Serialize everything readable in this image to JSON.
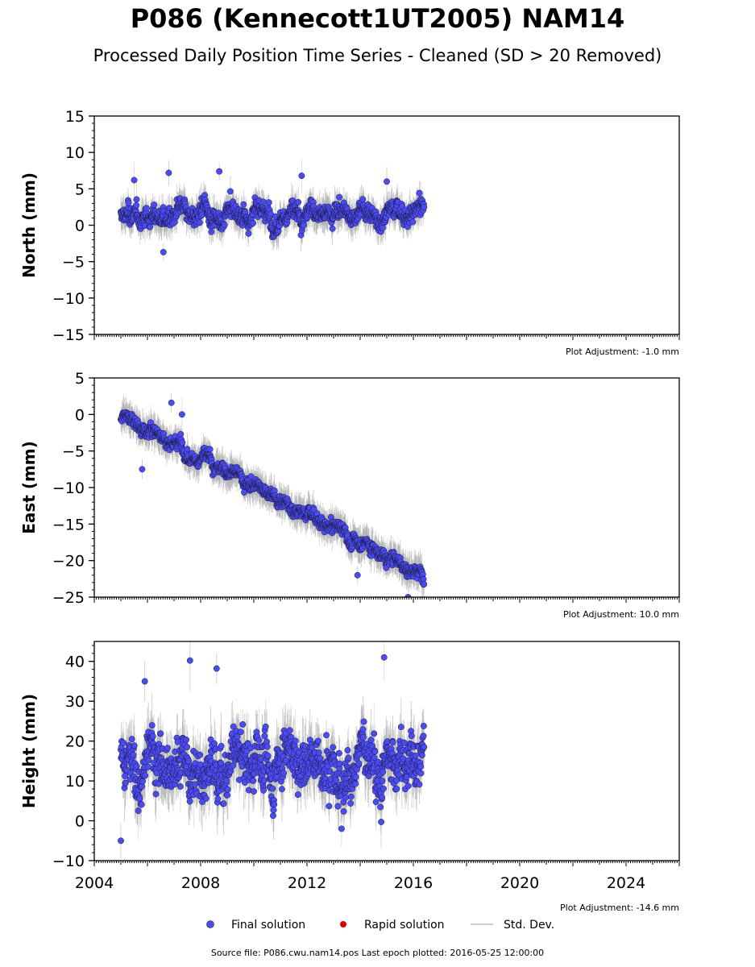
{
  "header": {
    "title": "P086 (Kennecott1UT2005) NAM14",
    "subtitle": "Processed Daily Position Time Series - Cleaned (SD > 20 Removed)"
  },
  "footer": {
    "source": "Source file: P086.cwu.nam14.pos  Last epoch plotted: 2016-05-25 12:00:00"
  },
  "colors": {
    "final": "#4b4bf5",
    "rapid": "#e00000",
    "stddev": "#bdbdbd"
  },
  "legend": {
    "final_label": "Final solution",
    "rapid_label": "Rapid solution",
    "std_label": "Std. Dev."
  },
  "chart_data": [
    {
      "type": "scatter",
      "ylabel": "North (mm)",
      "adjustment": "Plot Adjustment: -1.0 mm",
      "xlim": [
        2004,
        2026
      ],
      "ylim": [
        -15,
        15
      ],
      "yticks": [
        15,
        10,
        5,
        0,
        -5,
        -10,
        -15
      ],
      "ytick_labels": [
        "15",
        "10",
        "5",
        "0",
        "−5",
        "−10",
        "−15"
      ],
      "x_start": 2005.0,
      "x_end": 2016.4,
      "mean_start": 1.0,
      "mean_end": 2.0,
      "noise": 1.4,
      "err": 1.8,
      "outliers": [
        [
          2006.6,
          -3.7
        ],
        [
          2005.5,
          6.2
        ],
        [
          2006.8,
          7.2
        ],
        [
          2008.7,
          7.4
        ],
        [
          2011.8,
          6.8
        ],
        [
          2015.0,
          6.0
        ]
      ]
    },
    {
      "type": "scatter",
      "ylabel": "East (mm)",
      "adjustment": "Plot Adjustment: 10.0 mm",
      "xlim": [
        2004,
        2026
      ],
      "ylim": [
        -25,
        5
      ],
      "yticks": [
        5,
        0,
        -5,
        -10,
        -15,
        -20,
        -25
      ],
      "ytick_labels": [
        "5",
        "0",
        "−5",
        "−10",
        "−15",
        "−20",
        "−25"
      ],
      "x_start": 2005.0,
      "x_end": 2016.4,
      "mean_start": 0.0,
      "mean_end": -22.0,
      "noise": 1.0,
      "err": 1.8,
      "outliers": [
        [
          2006.9,
          1.6
        ],
        [
          2007.3,
          0.0
        ],
        [
          2005.8,
          -7.5
        ],
        [
          2013.9,
          -22.0
        ],
        [
          2015.8,
          -25.0
        ]
      ]
    },
    {
      "type": "scatter",
      "ylabel": "Height (mm)",
      "adjustment": "Plot Adjustment: -14.6 mm",
      "xlim": [
        2004,
        2026
      ],
      "ylim": [
        -10,
        45
      ],
      "yticks": [
        40,
        30,
        20,
        10,
        0,
        -10
      ],
      "ytick_labels": [
        "40",
        "30",
        "20",
        "10",
        "0",
        "−10"
      ],
      "xticks": [
        2004,
        2008,
        2012,
        2016,
        2020,
        2024
      ],
      "xtick_labels": [
        "2004",
        "2008",
        "2012",
        "2016",
        "2020",
        "2024"
      ],
      "x_start": 2005.0,
      "x_end": 2016.4,
      "mean_start": 15.0,
      "mean_end": 15.0,
      "noise": 7.0,
      "err": 6.0,
      "outliers": [
        [
          2007.6,
          40.2
        ],
        [
          2014.9,
          41.0
        ],
        [
          2008.6,
          38.2
        ],
        [
          2005.0,
          -5.0
        ],
        [
          2013.3,
          -2.0
        ],
        [
          2005.9,
          35.0
        ]
      ]
    }
  ]
}
